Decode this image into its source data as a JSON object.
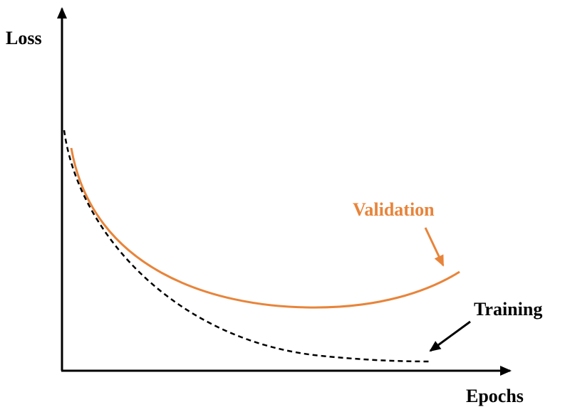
{
  "y_axis": {
    "label": "Loss"
  },
  "x_axis": {
    "label": "Epochs"
  },
  "curves": [
    {
      "label": "Validation"
    },
    {
      "label": "Training"
    }
  ]
}
